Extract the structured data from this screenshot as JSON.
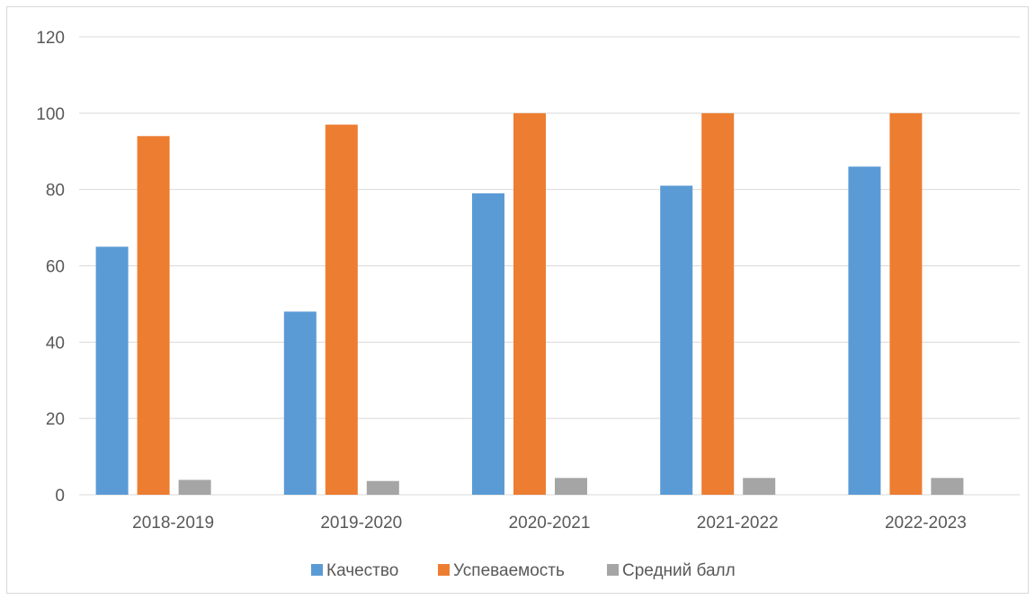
{
  "chart_data": {
    "type": "bar",
    "title": "",
    "xlabel": "",
    "ylabel": "",
    "categories": [
      "2018-2019",
      "2019-2020",
      "2020-2021",
      "2021-2022",
      "2022-2023"
    ],
    "series": [
      {
        "name": "Качество",
        "color": "#5B9BD5",
        "values": [
          65,
          48,
          79,
          81,
          86
        ]
      },
      {
        "name": "Успеваемость",
        "color": "#ED7D31",
        "values": [
          94,
          97,
          100,
          100,
          100
        ]
      },
      {
        "name": "Средний балл",
        "color": "#A5A5A5",
        "values": [
          3.9,
          3.6,
          4.4,
          4.4,
          4.4
        ]
      }
    ],
    "ylim": [
      0,
      120
    ],
    "yticks": [
      0,
      20,
      40,
      60,
      80,
      100,
      120
    ],
    "grid": true,
    "legend_position": "bottom"
  }
}
